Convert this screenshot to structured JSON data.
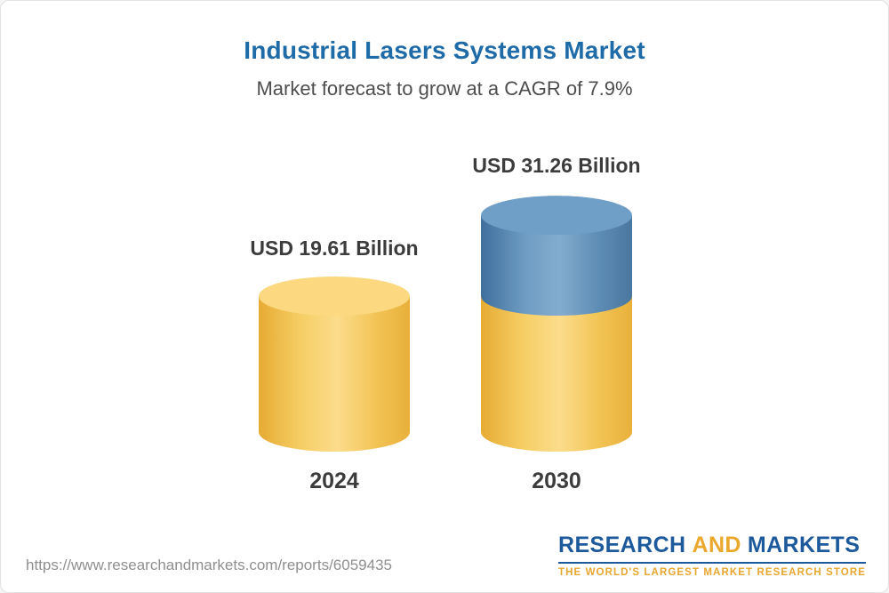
{
  "header": {
    "title": "Industrial Lasers Systems Market",
    "subtitle": "Market forecast to grow at a CAGR of 7.9%"
  },
  "chart_data": {
    "type": "bar",
    "variant": "3d-cylinder",
    "title": "Industrial Lasers Systems Market",
    "subtitle": "Market forecast to grow at a CAGR of 7.9%",
    "unit": "USD Billion",
    "cagr": "7.9%",
    "categories": [
      "2024",
      "2030"
    ],
    "values": [
      19.61,
      31.26
    ],
    "baseline_value": 19.61,
    "bars": [
      {
        "category": "2024",
        "value": 19.61,
        "value_label": "USD 19.61 Billion",
        "color_body": "#f3c34c",
        "color_cap": "#fcd981"
      },
      {
        "category": "2030",
        "value": 31.26,
        "value_label": "USD 31.26 Billion",
        "color_base": "#f3c34c",
        "color_growth": "#5584ad",
        "color_cap": "#6f9ec6"
      }
    ],
    "colors": {
      "gold": "#f3c34c",
      "blue": "#5584ad"
    },
    "legend": null,
    "grid": false
  },
  "footer": {
    "url": "https://www.researchandmarkets.com/reports/6059435"
  },
  "logo": {
    "part1": "RESEARCH",
    "part2": "AND",
    "part3": "MARKETS",
    "tagline": "THE WORLD'S LARGEST MARKET RESEARCH STORE"
  }
}
